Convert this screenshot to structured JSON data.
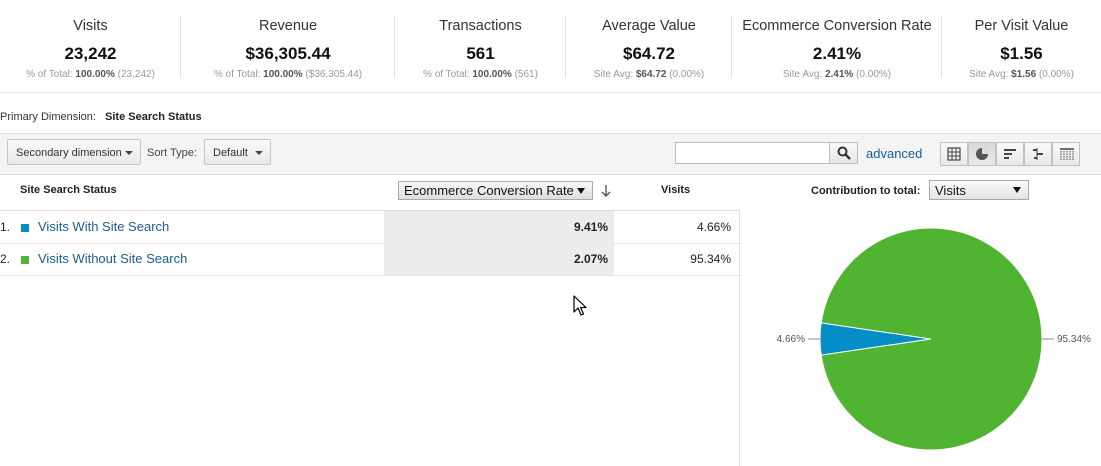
{
  "metrics": [
    {
      "label": "Visits",
      "value": "23,242",
      "sub_prefix": "% of Total:",
      "sub_bold": "100.00%",
      "sub_suffix": "(23,242)"
    },
    {
      "label": "Revenue",
      "value": "$36,305.44",
      "sub_prefix": "% of Total:",
      "sub_bold": "100.00%",
      "sub_suffix": "($36,305.44)"
    },
    {
      "label": "Transactions",
      "value": "561",
      "sub_prefix": "% of Total:",
      "sub_bold": "100.00%",
      "sub_suffix": "(561)"
    },
    {
      "label": "Average Value",
      "value": "$64.72",
      "sub_prefix": "Site Avg:",
      "sub_bold": "$64.72",
      "sub_suffix": "(0.00%)"
    },
    {
      "label": "Ecommerce Conversion Rate",
      "value": "2.41%",
      "sub_prefix": "Site Avg:",
      "sub_bold": "2.41%",
      "sub_suffix": "(0.00%)"
    },
    {
      "label": "Per Visit Value",
      "value": "$1.56",
      "sub_prefix": "Site Avg:",
      "sub_bold": "$1.56",
      "sub_suffix": "(0.00%)"
    }
  ],
  "primary_dimension": {
    "label": "Primary Dimension:",
    "value": "Site Search Status"
  },
  "toolbar": {
    "secondary_dimension": "Secondary dimension",
    "sort_type_label": "Sort Type:",
    "sort_type_value": "Default",
    "search_value": "",
    "advanced": "advanced"
  },
  "table": {
    "dimension_header": "Site Search Status",
    "metric_selector": "Ecommerce Conversion Rate",
    "visits_header": "Visits",
    "rows": [
      {
        "index": "1.",
        "label": "Visits With Site Search",
        "rate": "9.41%",
        "visits": "4.66%",
        "color": "#058dc7"
      },
      {
        "index": "2.",
        "label": "Visits Without Site Search",
        "rate": "2.07%",
        "visits": "95.34%",
        "color": "#50b432"
      }
    ]
  },
  "contribution": {
    "label": "Contribution to total:",
    "selector": "Visits"
  },
  "chart_data": {
    "type": "pie",
    "title": "",
    "slices": [
      {
        "label": "Visits With Site Search",
        "value": 4.66,
        "display": "4.66%",
        "color": "#058dc7"
      },
      {
        "label": "Visits Without Site Search",
        "value": 95.34,
        "display": "95.34%",
        "color": "#50b432"
      }
    ]
  }
}
